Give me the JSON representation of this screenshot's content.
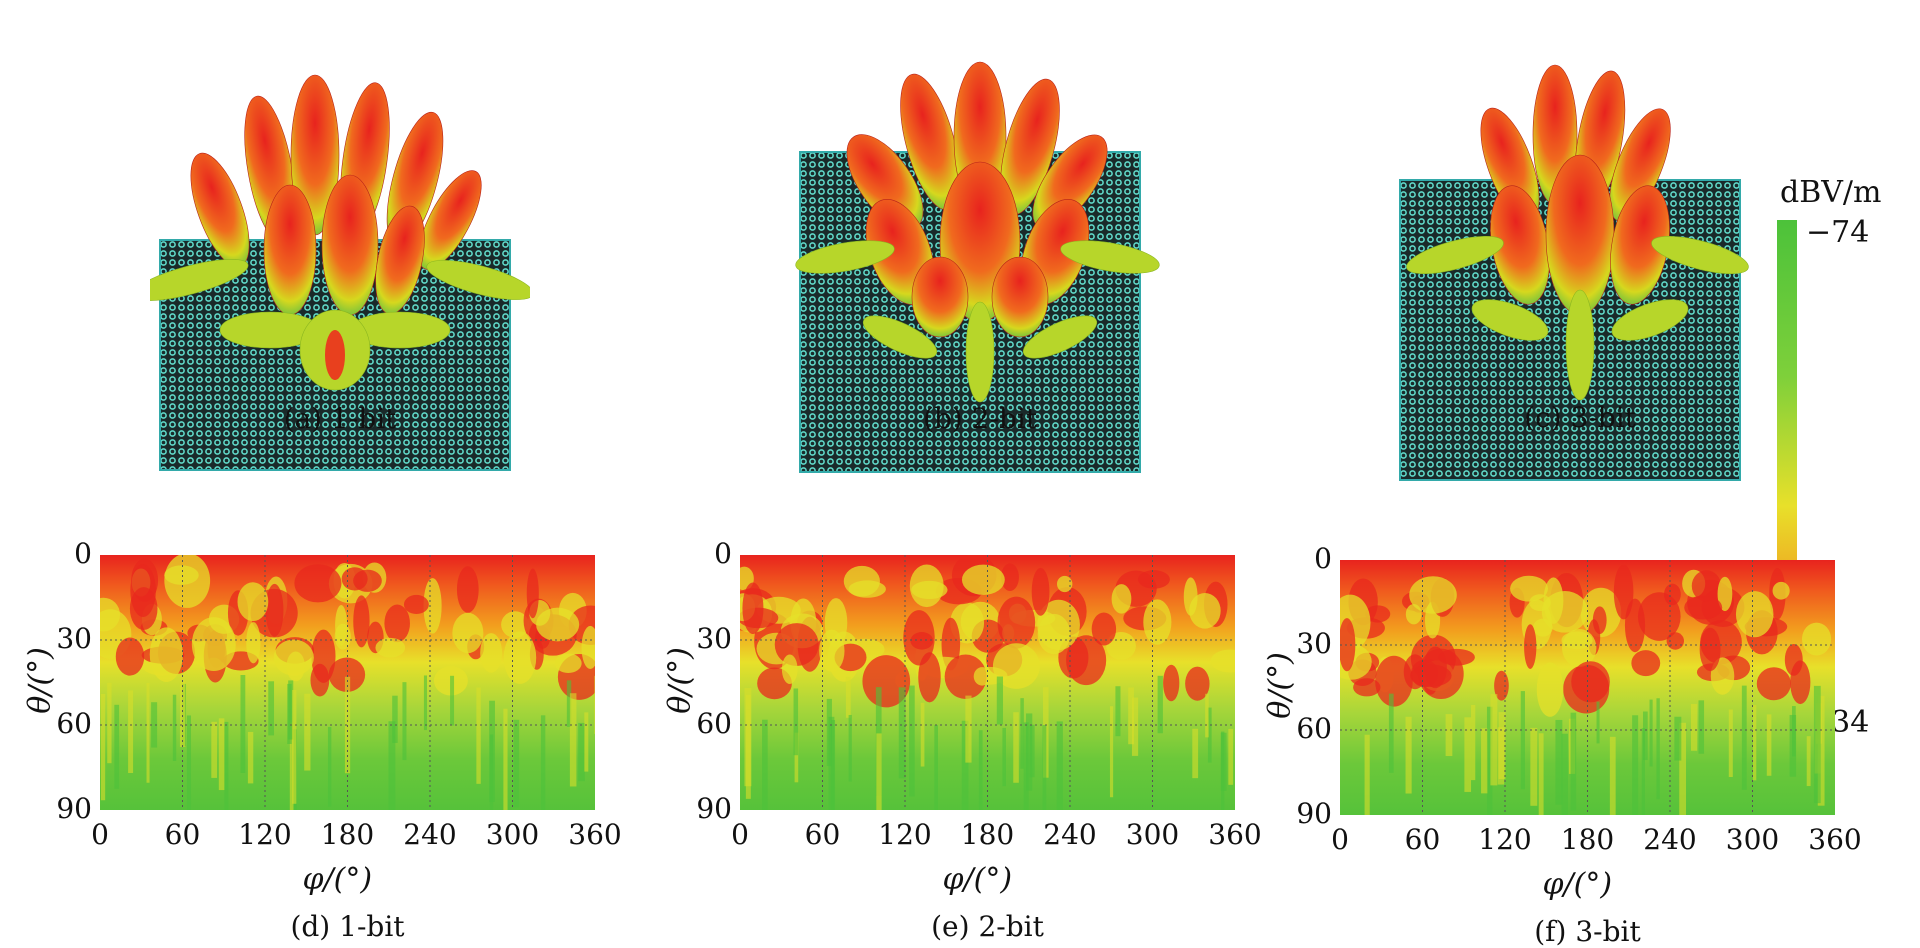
{
  "figure": {
    "panels_3d": [
      {
        "caption": "(a) 1-bit"
      },
      {
        "caption": "(b) 2-bit"
      },
      {
        "caption": "(c) 3-bit"
      }
    ],
    "panels_map": [
      {
        "caption": "(d) 1-bit"
      },
      {
        "caption": "(e) 2-bit"
      },
      {
        "caption": "(f) 3-bit"
      }
    ],
    "colorbar": {
      "unit": "dBV/m",
      "top_label": "−74",
      "bottom_label": "−34",
      "colors": [
        "#4cc23a",
        "#e8e02a",
        "#f28a1e",
        "#e8231e"
      ]
    }
  },
  "chart_data": [
    {
      "type": "heatmap",
      "title": "",
      "xlabel": "φ/(°)",
      "ylabel": "θ/(°)",
      "x_ticks": [
        "0",
        "60",
        "120",
        "180",
        "240",
        "300",
        "360"
      ],
      "y_ticks": [
        "0",
        "30",
        "60",
        "90"
      ],
      "xlim": [
        0,
        360
      ],
      "ylim": [
        0,
        90
      ],
      "grid": true
    },
    {
      "type": "heatmap",
      "title": "",
      "xlabel": "φ/(°)",
      "ylabel": "θ/(°)",
      "x_ticks": [
        "0",
        "60",
        "120",
        "180",
        "240",
        "300",
        "360"
      ],
      "y_ticks": [
        "0",
        "30",
        "60",
        "90"
      ],
      "xlim": [
        0,
        360
      ],
      "ylim": [
        0,
        90
      ],
      "grid": true
    },
    {
      "type": "heatmap",
      "title": "",
      "xlabel": "φ/(°)",
      "ylabel": "θ/(°)",
      "x_ticks": [
        "0",
        "60",
        "120",
        "180",
        "240",
        "300",
        "360"
      ],
      "y_ticks": [
        "0",
        "30",
        "60",
        "90"
      ],
      "xlim": [
        0,
        360
      ],
      "ylim": [
        0,
        90
      ],
      "grid": true
    }
  ]
}
